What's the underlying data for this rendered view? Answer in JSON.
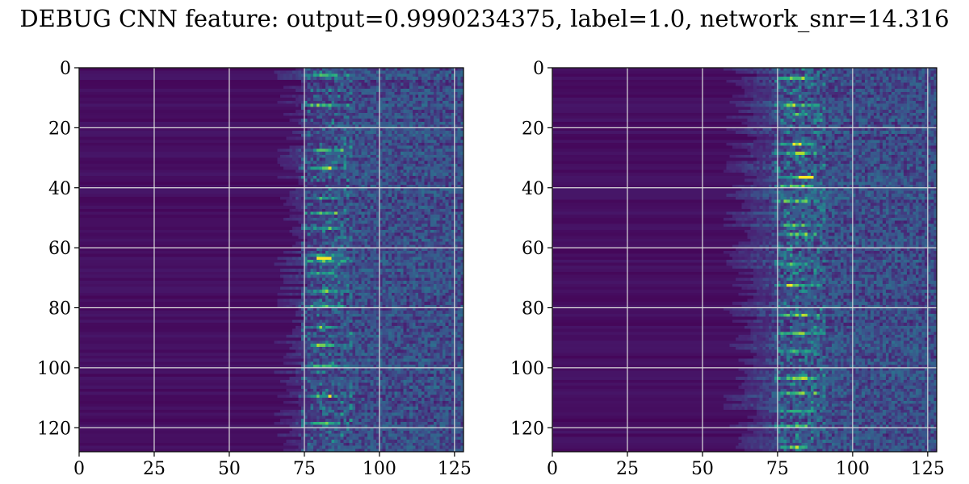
{
  "title": "DEBUG CNN feature: output=0.9990234375, label=1.0, network_snr=14.316",
  "colors": {
    "colormap": "viridis",
    "grid": "#dcdcdc",
    "background": "#ffffff",
    "axis": "#000000"
  },
  "chart_data": [
    {
      "type": "heatmap",
      "title": "",
      "xlabel": "",
      "ylabel": "",
      "xlim": [
        0,
        128
      ],
      "ylim": [
        128,
        0
      ],
      "x_ticks": [
        0,
        25,
        50,
        75,
        100,
        125
      ],
      "y_ticks": [
        0,
        20,
        40,
        60,
        80,
        100,
        120
      ],
      "grid": true,
      "colormap": "viridis",
      "shape": [
        128,
        128
      ],
      "bright_rows": [
        2,
        12,
        27,
        33,
        43,
        48,
        53,
        62,
        64,
        68,
        74,
        79,
        86,
        92,
        99,
        109,
        118
      ],
      "bright_columns_range": [
        72,
        90
      ],
      "peak_value_location": [
        63,
        81
      ]
    },
    {
      "type": "heatmap",
      "title": "",
      "xlabel": "",
      "ylabel": "",
      "xlim": [
        0,
        128
      ],
      "ylim": [
        128,
        0
      ],
      "x_ticks": [
        0,
        25,
        50,
        75,
        100,
        125
      ],
      "y_ticks": [
        0,
        20,
        40,
        60,
        80,
        100,
        120
      ],
      "grid": true,
      "colormap": "viridis",
      "shape": [
        128,
        128
      ],
      "bright_rows": [
        3,
        12,
        15,
        25,
        28,
        36,
        39,
        44,
        52,
        55,
        65,
        72,
        82,
        88,
        94,
        103,
        108,
        114,
        119,
        126
      ],
      "bright_columns_range": [
        70,
        92
      ],
      "peak_value_location": [
        36,
        84
      ]
    }
  ]
}
